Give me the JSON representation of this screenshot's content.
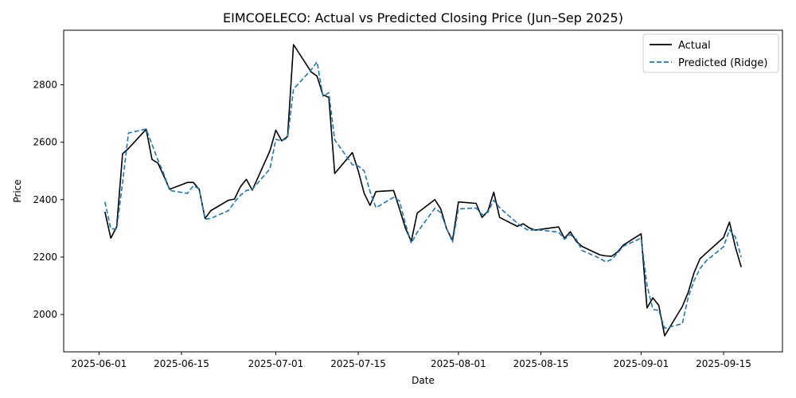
{
  "chart_data": {
    "type": "line",
    "title": "EIMCOELECO: Actual vs Predicted Closing Price (Jun–Sep 2025)",
    "xlabel": "Date",
    "ylabel": "Price",
    "xlim": [
      "2025-05-26",
      "2025-09-25"
    ],
    "ylim": [
      1870,
      2990
    ],
    "x_ticks": [
      {
        "date": "2025-06-01",
        "label": "2025-06-01"
      },
      {
        "date": "2025-06-15",
        "label": "2025-06-15"
      },
      {
        "date": "2025-07-01",
        "label": "2025-07-01"
      },
      {
        "date": "2025-07-15",
        "label": "2025-07-15"
      },
      {
        "date": "2025-08-01",
        "label": "2025-08-01"
      },
      {
        "date": "2025-08-15",
        "label": "2025-08-15"
      },
      {
        "date": "2025-09-01",
        "label": "2025-09-01"
      },
      {
        "date": "2025-09-15",
        "label": "2025-09-15"
      }
    ],
    "y_ticks": [
      2000,
      2200,
      2400,
      2600,
      2800
    ],
    "grid": false,
    "legend": {
      "position": "top-right"
    },
    "x": [
      "2025-06-02",
      "2025-06-03",
      "2025-06-04",
      "2025-06-05",
      "2025-06-06",
      "2025-06-09",
      "2025-06-10",
      "2025-06-11",
      "2025-06-12",
      "2025-06-13",
      "2025-06-16",
      "2025-06-17",
      "2025-06-18",
      "2025-06-19",
      "2025-06-20",
      "2025-06-23",
      "2025-06-24",
      "2025-06-25",
      "2025-06-26",
      "2025-06-27",
      "2025-06-30",
      "2025-07-01",
      "2025-07-02",
      "2025-07-03",
      "2025-07-04",
      "2025-07-07",
      "2025-07-08",
      "2025-07-09",
      "2025-07-10",
      "2025-07-11",
      "2025-07-14",
      "2025-07-15",
      "2025-07-16",
      "2025-07-17",
      "2025-07-18",
      "2025-07-21",
      "2025-07-22",
      "2025-07-23",
      "2025-07-24",
      "2025-07-25",
      "2025-07-28",
      "2025-07-29",
      "2025-07-30",
      "2025-07-31",
      "2025-08-01",
      "2025-08-04",
      "2025-08-05",
      "2025-08-06",
      "2025-08-07",
      "2025-08-08",
      "2025-08-11",
      "2025-08-12",
      "2025-08-13",
      "2025-08-14",
      "2025-08-18",
      "2025-08-19",
      "2025-08-20",
      "2025-08-21",
      "2025-08-22",
      "2025-08-25",
      "2025-08-26",
      "2025-08-27",
      "2025-08-28",
      "2025-08-29",
      "2025-09-01",
      "2025-09-02",
      "2025-09-03",
      "2025-09-04",
      "2025-09-05",
      "2025-09-08",
      "2025-09-09",
      "2025-09-10",
      "2025-09-11",
      "2025-09-12",
      "2025-09-15",
      "2025-09-16",
      "2025-09-17",
      "2025-09-18"
    ],
    "series": [
      {
        "name": "Actual",
        "color": "#000000",
        "dash": "solid",
        "values": [
          2358,
          2266,
          2306,
          2560,
          2578,
          2645,
          2540,
          2527,
          2482,
          2436,
          2460,
          2460,
          2436,
          2335,
          2362,
          2398,
          2402,
          2445,
          2471,
          2433,
          2570,
          2642,
          2605,
          2620,
          2940,
          2845,
          2830,
          2765,
          2756,
          2491,
          2564,
          2500,
          2422,
          2380,
          2428,
          2432,
          2368,
          2301,
          2255,
          2353,
          2400,
          2368,
          2298,
          2258,
          2392,
          2387,
          2338,
          2360,
          2426,
          2338,
          2307,
          2316,
          2302,
          2294,
          2305,
          2265,
          2288,
          2255,
          2237,
          2208,
          2204,
          2203,
          2218,
          2242,
          2281,
          2023,
          2058,
          2032,
          1926,
          2028,
          2077,
          2146,
          2194,
          2213,
          2268,
          2322,
          2235,
          2165
        ]
      },
      {
        "name": "Predicted (Ridge)",
        "color": "#1f77b4",
        "dash": "dashed",
        "values": [
          2392,
          2298,
          2298,
          2460,
          2632,
          2646,
          2592,
          2538,
          2490,
          2432,
          2422,
          2448,
          2438,
          2332,
          2335,
          2362,
          2392,
          2415,
          2432,
          2436,
          2507,
          2610,
          2605,
          2615,
          2785,
          2852,
          2880,
          2760,
          2772,
          2608,
          2522,
          2517,
          2500,
          2428,
          2372,
          2408,
          2395,
          2316,
          2248,
          2286,
          2370,
          2355,
          2300,
          2252,
          2368,
          2371,
          2348,
          2356,
          2398,
          2372,
          2318,
          2303,
          2292,
          2296,
          2287,
          2262,
          2278,
          2262,
          2223,
          2196,
          2183,
          2192,
          2214,
          2238,
          2266,
          2102,
          2018,
          2014,
          1952,
          1968,
          2060,
          2118,
          2160,
          2186,
          2236,
          2295,
          2270,
          2200
        ]
      }
    ]
  }
}
